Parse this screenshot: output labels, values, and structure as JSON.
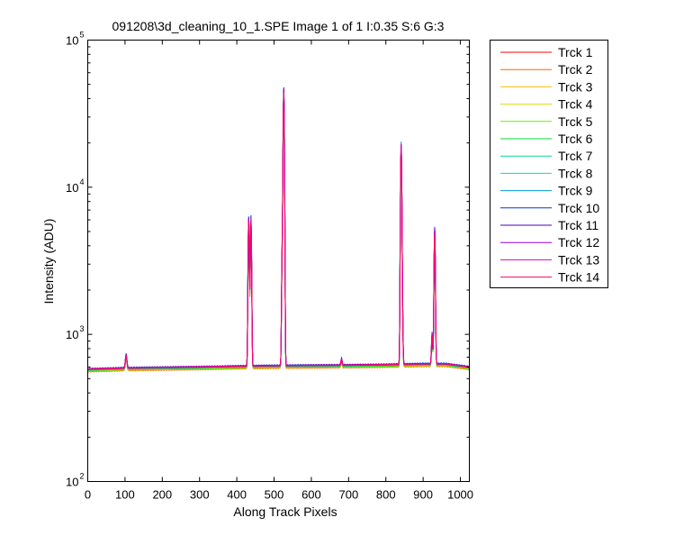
{
  "chart_data": {
    "type": "line",
    "title": "091208\\3d_cleaning_10_1.SPE  Image 1 of 1  I:0.35  S:6  G:3",
    "xlabel": "Along Track Pixels",
    "ylabel": "Intensity (ADU)",
    "xlim": [
      0,
      1024
    ],
    "ylim": [
      100,
      100000
    ],
    "yscale": "log",
    "x_ticks": [
      0,
      100,
      200,
      300,
      400,
      500,
      600,
      700,
      800,
      900,
      1000
    ],
    "y_ticks": [
      {
        "value": 100,
        "base": "10",
        "exp": "2"
      },
      {
        "value": 1000,
        "base": "10",
        "exp": "3"
      },
      {
        "value": 10000,
        "base": "10",
        "exp": "4"
      },
      {
        "value": 100000,
        "base": "10",
        "exp": "5"
      }
    ],
    "grid": false,
    "legend_position": "outside-right",
    "series": [
      {
        "name": "Trck 1",
        "color": "#ff0000",
        "scale": 0.97,
        "pk": 0.93
      },
      {
        "name": "Trck 2",
        "color": "#ff6600",
        "scale": 0.96,
        "pk": 0.9
      },
      {
        "name": "Trck 3",
        "color": "#ffbb00",
        "scale": 0.98,
        "pk": 0.95
      },
      {
        "name": "Trck 4",
        "color": "#dddd00",
        "scale": 0.97,
        "pk": 0.92
      },
      {
        "name": "Trck 5",
        "color": "#66ee00",
        "scale": 0.99,
        "pk": 0.96
      },
      {
        "name": "Trck 6",
        "color": "#00dd33",
        "scale": 0.98,
        "pk": 0.94
      },
      {
        "name": "Trck 7",
        "color": "#00dd88",
        "scale": 0.99,
        "pk": 0.97
      },
      {
        "name": "Trck 8",
        "color": "#00ddcc",
        "scale": 1.0,
        "pk": 0.98
      },
      {
        "name": "Trck 9",
        "color": "#0099dd",
        "scale": 1.0,
        "pk": 1.02
      },
      {
        "name": "Trck 10",
        "color": "#0033ee",
        "scale": 1.01,
        "pk": 1.05
      },
      {
        "name": "Trck 11",
        "color": "#4400bb",
        "scale": 1.0,
        "pk": 1.0
      },
      {
        "name": "Trck 12",
        "color": "#9900dd",
        "scale": 1.0,
        "pk": 0.98
      },
      {
        "name": "Trck 13",
        "color": "#dd00cc",
        "scale": 1.0,
        "pk": 0.99
      },
      {
        "name": "Trck 14",
        "color": "#ff0066",
        "scale": 1.0,
        "pk": 1.0
      }
    ],
    "baseline": [
      [
        0,
        580
      ],
      [
        100,
        590
      ],
      [
        200,
        595
      ],
      [
        300,
        600
      ],
      [
        420,
        608
      ],
      [
        500,
        612
      ],
      [
        600,
        615
      ],
      [
        700,
        618
      ],
      [
        800,
        622
      ],
      [
        900,
        630
      ],
      [
        960,
        630
      ],
      [
        1024,
        600
      ]
    ],
    "peaks": [
      {
        "x": 103,
        "height": 720,
        "width": 2
      },
      {
        "x": 432,
        "height": 6100,
        "width": 1.5
      },
      {
        "x": 438,
        "height": 5800,
        "width": 1.5
      },
      {
        "x": 522,
        "height": 3500,
        "width": 1.5
      },
      {
        "x": 526,
        "height": 45000,
        "width": 1.5
      },
      {
        "x": 681,
        "height": 680,
        "width": 1.5
      },
      {
        "x": 841,
        "height": 19000,
        "width": 1.5
      },
      {
        "x": 844,
        "height": 1400,
        "width": 1.5
      },
      {
        "x": 924,
        "height": 1000,
        "width": 1.5
      },
      {
        "x": 931,
        "height": 5200,
        "width": 1.5
      }
    ]
  }
}
